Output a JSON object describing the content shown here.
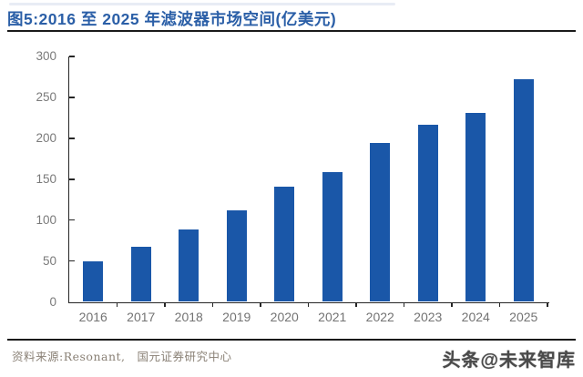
{
  "page": {
    "title": "图5:2016 至 2025 年滤波器市场空间(亿美元)",
    "source_note": "资料来源:Resonant,　国元证券研究中心",
    "watermark": "头条@未来智库"
  },
  "colors": {
    "bar": "#1a57a8",
    "title": "#2b5fa7",
    "axis": "#262626",
    "tick_label": "#7a7a7a",
    "xlabel": "#737373",
    "source": "#8a8176",
    "watermark": "#4a4a4a",
    "rule": "#1a1a1a"
  },
  "chart_data": {
    "type": "bar",
    "title": "2016 至 2025 年滤波器市场空间(亿美元)",
    "categories": [
      "2016",
      "2017",
      "2018",
      "2019",
      "2020",
      "2021",
      "2022",
      "2023",
      "2024",
      "2025"
    ],
    "values": [
      50,
      67,
      88,
      112,
      141,
      159,
      194,
      216,
      231,
      272
    ],
    "xlabel": "",
    "ylabel": "",
    "ylim": [
      0,
      300
    ],
    "yticks": [
      0,
      50,
      100,
      150,
      200,
      250,
      300
    ],
    "grid": false,
    "legend": null,
    "bar_color": "#1a57a8"
  }
}
